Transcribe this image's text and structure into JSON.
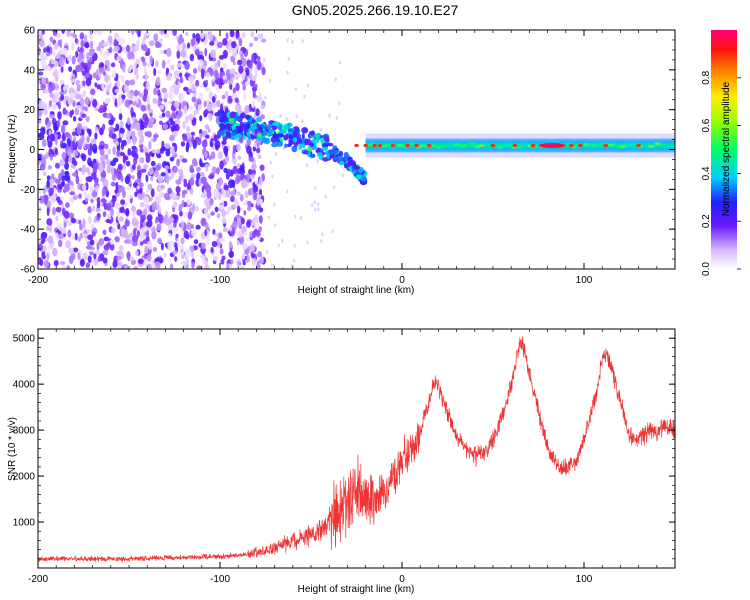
{
  "title": "GN05.2025.266.19.10.E27",
  "chart_data": [
    {
      "type": "heatmap",
      "xlabel": "Height of straight line (km)",
      "ylabel": "Frequency (Hz)",
      "xlim": [
        -200,
        150
      ],
      "ylim": [
        -60,
        60
      ],
      "x_ticks": [
        "-200",
        "-100",
        "0",
        "100"
      ],
      "y_ticks": [
        "60",
        "40",
        "20",
        "0",
        "-20",
        "-40",
        "-60"
      ],
      "colorbar": {
        "label": "Normalized spectral amplitude",
        "range": [
          0,
          1
        ],
        "ticks": [
          "0.0",
          "0.2",
          "0.4",
          "0.6",
          "0.8"
        ]
      },
      "features": [
        {
          "name": "diffuse noise",
          "x_range": [
            -200,
            -82
          ],
          "freq_range": [
            -60,
            60
          ],
          "amplitude": 0.2
        },
        {
          "name": "descending trace",
          "x": [
            -100,
            -80,
            -60,
            -40,
            -30,
            -20
          ],
          "freq": [
            13,
            10,
            6,
            0,
            -6,
            -15
          ],
          "amplitude": 0.4
        },
        {
          "name": "steady trace",
          "x_range": [
            -20,
            150
          ],
          "freq": 2,
          "amplitude": 0.55
        },
        {
          "name": "peak",
          "x_range": [
            75,
            90
          ],
          "freq": 2,
          "amplitude": 0.95
        }
      ]
    },
    {
      "type": "line",
      "xlabel": "Height of straight line (km)",
      "ylabel": "SNR (10 * v/v)",
      "xlim": [
        -200,
        150
      ],
      "ylim": [
        0,
        5200
      ],
      "x_ticks": [
        "-200",
        "-100",
        "0",
        "100"
      ],
      "y_ticks": [
        "1000",
        "2000",
        "3000",
        "4000",
        "5000"
      ],
      "color": "#ee3333",
      "envelope": {
        "x": [
          -200,
          -150,
          -100,
          -85,
          -70,
          -60,
          -50,
          -45,
          -40,
          -35,
          -30,
          -26,
          -22,
          -18,
          -10,
          -5,
          0,
          5,
          10,
          13,
          16,
          18,
          20,
          24,
          30,
          35,
          40,
          45,
          50,
          55,
          60,
          63,
          65,
          67,
          70,
          75,
          80,
          85,
          90,
          95,
          100,
          105,
          108,
          110,
          113,
          116,
          120,
          125,
          130,
          135,
          140,
          145,
          150
        ],
        "y": [
          200,
          200,
          250,
          300,
          420,
          600,
          750,
          850,
          1000,
          1150,
          1300,
          1800,
          1700,
          1500,
          1600,
          1900,
          2300,
          2600,
          2900,
          3400,
          3800,
          4100,
          4000,
          3500,
          2900,
          2600,
          2450,
          2500,
          2800,
          3300,
          4000,
          4600,
          4900,
          4800,
          4200,
          3400,
          2600,
          2250,
          2150,
          2300,
          2800,
          3500,
          4000,
          4550,
          4600,
          4200,
          3600,
          2900,
          2750,
          3000,
          2950,
          3100,
          3000
        ]
      }
    }
  ]
}
